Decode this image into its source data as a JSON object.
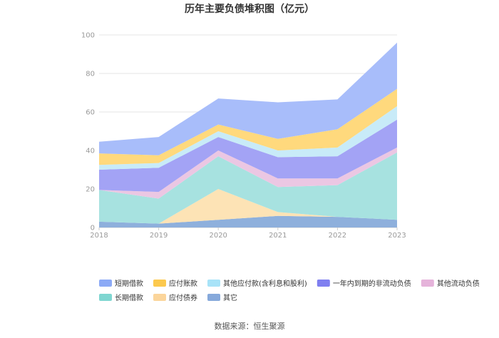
{
  "chart_data": {
    "type": "area",
    "stacked": true,
    "title": "历年主要负债堆积图（亿元）",
    "source": "数据来源：恒生聚源",
    "x": [
      "2018",
      "2019",
      "2020",
      "2021",
      "2022",
      "2023"
    ],
    "yticks": [
      "0",
      "20",
      "40",
      "60",
      "80",
      "100"
    ],
    "ylim": [
      0,
      100
    ],
    "grid": true,
    "legend_position": "bottom",
    "series": [
      {
        "name": "其它",
        "color": "#8eb0dc",
        "values": [
          3,
          2,
          4,
          6,
          5.5,
          4
        ]
      },
      {
        "name": "应付债券",
        "color": "#fde3b5",
        "values": [
          0,
          0,
          16,
          2,
          0,
          0
        ]
      },
      {
        "name": "长期借款",
        "color": "#a7e2e0",
        "values": [
          16.5,
          13,
          17,
          13,
          16.5,
          35
        ]
      },
      {
        "name": "其他流动负债",
        "color": "#ebc7e3",
        "values": [
          0,
          3.5,
          3,
          4.5,
          3.5,
          2.5
        ]
      },
      {
        "name": "一年内到期的非流动负债",
        "color": "#a3a3f5",
        "values": [
          10.5,
          12.5,
          7,
          11,
          11.5,
          14.5
        ]
      },
      {
        "name": "其他应付款(含利息和股利)",
        "color": "#c8ebf8",
        "values": [
          2.5,
          2.5,
          3,
          3.5,
          4.5,
          7
        ]
      },
      {
        "name": "应付账款",
        "color": "#ffd97d",
        "values": [
          6,
          4,
          3.5,
          6,
          9.5,
          9
        ]
      },
      {
        "name": "短期借款",
        "color": "#a8bdfa",
        "values": [
          6,
          9.5,
          13.5,
          19,
          15.5,
          24
        ]
      }
    ],
    "legend": [
      {
        "name": "短期借款",
        "swatch": "#8caaf6"
      },
      {
        "name": "应付账款",
        "swatch": "#fcc94e"
      },
      {
        "name": "其他应付款(含利息和股利)",
        "swatch": "#a8e3f8"
      },
      {
        "name": "一年内到期的非流动负债",
        "swatch": "#7f7ff0"
      },
      {
        "name": "其他流动负债",
        "swatch": "#e5b3da"
      },
      {
        "name": "长期借款",
        "swatch": "#7fd6d1"
      },
      {
        "name": "应付债券",
        "swatch": "#fbd59b"
      },
      {
        "name": "其它",
        "swatch": "#86a9db"
      }
    ]
  }
}
